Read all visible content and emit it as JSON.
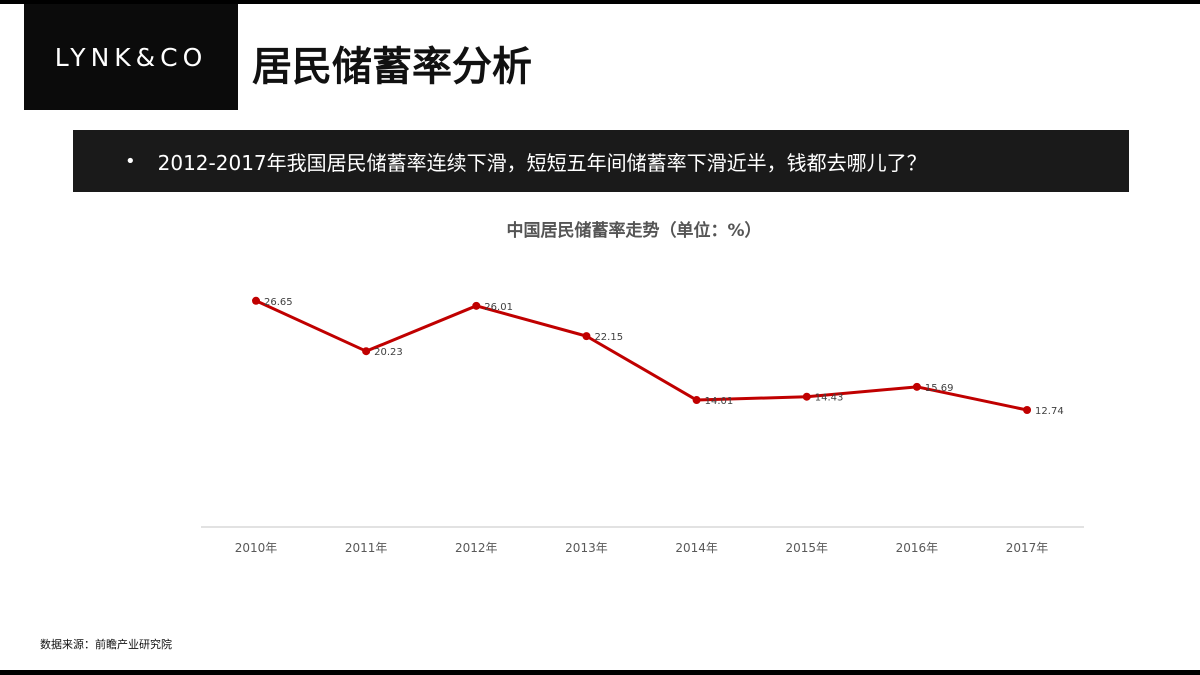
{
  "header": {
    "logo_text": "LYNK&CO",
    "title": "居民储蓄率分析"
  },
  "banner": {
    "bullet": "•",
    "text": "2012-2017年我国居民储蓄率连续下滑，短短五年间储蓄率下滑近半，钱都去哪儿了？"
  },
  "footer": {
    "source": "数据来源：前瞻产业研究院"
  },
  "colors": {
    "line": "#c00000",
    "axis": "#d9d9d9",
    "banner_bg": "#1a1a1a"
  },
  "chart_data": {
    "type": "line",
    "title": "中国居民储蓄率走势（单位：%）",
    "categories": [
      "2010年",
      "2011年",
      "2012年",
      "2013年",
      "2014年",
      "2015年",
      "2016年",
      "2017年"
    ],
    "series": [
      {
        "values": [
          26.65,
          20.23,
          26.01,
          22.15,
          14.01,
          14.43,
          15.69,
          12.74
        ]
      }
    ],
    "ylim": [
      0,
      30
    ],
    "grid": false,
    "legend": "none"
  }
}
